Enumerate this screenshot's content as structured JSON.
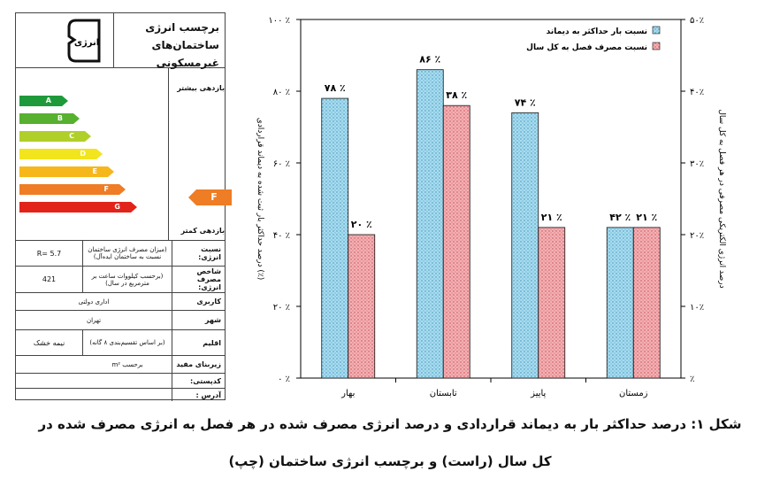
{
  "energy_label": {
    "title": "برچسب انرژی ساختمان‌های غیرمسکونی",
    "logo_text": "انرژی",
    "higher_efficiency": "بازدهی بیشتر",
    "lower_efficiency": "بازدهی کمتر",
    "grades": [
      {
        "letter": "A",
        "color": "#1f9a3a"
      },
      {
        "letter": "B",
        "color": "#57b02f"
      },
      {
        "letter": "C",
        "color": "#b1cf2a"
      },
      {
        "letter": "D",
        "color": "#f2e51d"
      },
      {
        "letter": "E",
        "color": "#f6b71b"
      },
      {
        "letter": "F",
        "color": "#ee7d25"
      },
      {
        "letter": "G",
        "color": "#e2231a"
      }
    ],
    "current_grade": "F",
    "rows": [
      {
        "key": "نسبت انرژی:",
        "desc": "(میزان مصرف انرژی ساختمان نسبت به ساختمان ایده‌آل)",
        "value": "R= 5.7"
      },
      {
        "key": "شاخص مصرف انرژی:",
        "desc": "(برحسب کیلووات ساعت بر مترمربع در سال)",
        "value": "421"
      },
      {
        "key": "کاربری",
        "desc": "اداری دولتی",
        "value": ""
      },
      {
        "key": "شهر",
        "desc": "تهران",
        "value": ""
      },
      {
        "key": "اقلیم",
        "desc": "(بر اساس تقسیم‌بندی ۸ گانه)",
        "value": "نیمه خشک"
      },
      {
        "key": "زیربنای مفید",
        "desc": "برحسب m²",
        "value": ""
      },
      {
        "key": "کدپستی:",
        "desc": "",
        "value": ""
      },
      {
        "key": "آدرس :",
        "desc": "",
        "value": ""
      }
    ]
  },
  "chart_data": {
    "type": "bar",
    "categories": [
      "بهار",
      "تابستان",
      "پاییز",
      "زمستان"
    ],
    "series": [
      {
        "name": "نسبت بار حداکثر به دیماند",
        "values": [
          78,
          86,
          74,
          42
        ],
        "labels": [
          "۷۸ ٪",
          "۸۶ ٪",
          "۷۴ ٪",
          "۴۲ ٪"
        ],
        "axis": "left",
        "color": "#9fd6ea"
      },
      {
        "name": "نسبت مصرف فصل به کل سال",
        "values": [
          20,
          38,
          21,
          21
        ],
        "labels": [
          "۲۰ ٪",
          "۳۸ ٪",
          "۲۱ ٪",
          "۲۱ ٪"
        ],
        "axis": "right",
        "color": "#f0a3a6"
      }
    ],
    "ylabel_left": "درصد حداکثر بار ثبت شده به دیماند قراردادی (٪)",
    "ylabel_right": "درصد انرژی الکتریکی مصرفی در هر فصل به کل سال",
    "ylim_left": [
      0,
      100
    ],
    "ylim_right": [
      0,
      50
    ],
    "yticks_left": [
      "۰ ٪",
      "۲۰ ٪",
      "۴۰ ٪",
      "۶۰ ٪",
      "۸۰ ٪",
      "۱۰۰ ٪"
    ],
    "yticks_right": [
      "٪",
      "۱۰٪",
      "۲۰٪",
      "۳۰٪",
      "۴۰٪",
      "۵۰٪"
    ],
    "legend_position": "top-right",
    "grid": false
  },
  "caption_line1": "شکل ۱: درصد حداکثر بار به دیماند قراردادی و درصد انرژی مصرف شده در هر فصل به انرژی مصرف شده در",
  "caption_line2": "کل سال (راست) و برچسب انرژی ساختمان (چپ)"
}
